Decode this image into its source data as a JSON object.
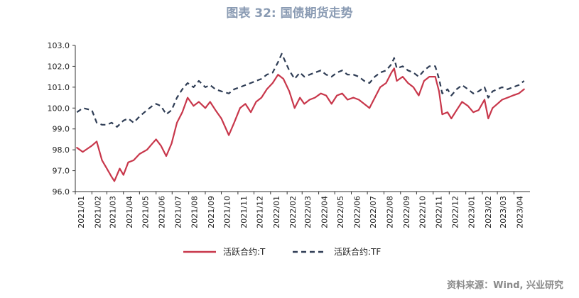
{
  "chart_data": {
    "type": "line",
    "title": "图表 32: 国债期货走势",
    "source": "资料来源：Wind, 兴业研究",
    "xlabel": "",
    "ylabel": "",
    "ylim": [
      96.0,
      103.0
    ],
    "yticks": [
      "96.0",
      "97.0",
      "98.0",
      "99.0",
      "100.0",
      "101.0",
      "102.0",
      "103.0"
    ],
    "x_range": [
      "2021/01",
      "2023/04"
    ],
    "xticks": [
      "2021/01",
      "2021/02",
      "2021/03",
      "2021/04",
      "2021/05",
      "2021/06",
      "2021/07",
      "2021/08",
      "2021/09",
      "2021/10",
      "2021/11",
      "2021/12",
      "2022/01",
      "2022/02",
      "2022/03",
      "2022/04",
      "2022/05",
      "2022/06",
      "2022/07",
      "2022/08",
      "2022/09",
      "2022/10",
      "2022/11",
      "2022/12",
      "2023/01",
      "2023/02",
      "2023/03",
      "2023/04"
    ],
    "grid": false,
    "legend_position": "bottom",
    "series": [
      {
        "name": "活跃合约:T",
        "color": "#c8374b",
        "style": "solid",
        "points": [
          [
            "2021/01/04",
            98.1
          ],
          [
            "2021/01/15",
            97.9
          ],
          [
            "2021/02/01",
            98.2
          ],
          [
            "2021/02/10",
            98.4
          ],
          [
            "2021/02/20",
            97.5
          ],
          [
            "2021/03/01",
            97.1
          ],
          [
            "2021/03/10",
            96.7
          ],
          [
            "2021/03/15",
            96.5
          ],
          [
            "2021/03/25",
            97.1
          ],
          [
            "2021/04/01",
            96.8
          ],
          [
            "2021/04/10",
            97.4
          ],
          [
            "2021/04/20",
            97.5
          ],
          [
            "2021/05/01",
            97.8
          ],
          [
            "2021/05/15",
            98.0
          ],
          [
            "2021/05/25",
            98.3
          ],
          [
            "2021/06/01",
            98.5
          ],
          [
            "2021/06/10",
            98.2
          ],
          [
            "2021/06/20",
            97.7
          ],
          [
            "2021/06/30",
            98.3
          ],
          [
            "2021/07/10",
            99.3
          ],
          [
            "2021/07/20",
            99.8
          ],
          [
            "2021/07/30",
            100.5
          ],
          [
            "2021/08/10",
            100.1
          ],
          [
            "2021/08/20",
            100.3
          ],
          [
            "2021/09/01",
            100.0
          ],
          [
            "2021/09/10",
            100.3
          ],
          [
            "2021/09/20",
            99.9
          ],
          [
            "2021/10/01",
            99.5
          ],
          [
            "2021/10/15",
            98.7
          ],
          [
            "2021/10/25",
            99.3
          ],
          [
            "2021/11/05",
            100.0
          ],
          [
            "2021/11/15",
            100.2
          ],
          [
            "2021/11/25",
            99.8
          ],
          [
            "2021/12/05",
            100.3
          ],
          [
            "2021/12/15",
            100.5
          ],
          [
            "2021/12/25",
            100.9
          ],
          [
            "2022/01/05",
            101.2
          ],
          [
            "2022/01/15",
            101.6
          ],
          [
            "2022/01/25",
            101.4
          ],
          [
            "2022/02/05",
            100.8
          ],
          [
            "2022/02/15",
            100.0
          ],
          [
            "2022/02/25",
            100.5
          ],
          [
            "2022/03/05",
            100.2
          ],
          [
            "2022/03/15",
            100.4
          ],
          [
            "2022/03/25",
            100.5
          ],
          [
            "2022/04/05",
            100.7
          ],
          [
            "2022/04/15",
            100.6
          ],
          [
            "2022/04/25",
            100.2
          ],
          [
            "2022/05/05",
            100.6
          ],
          [
            "2022/05/15",
            100.7
          ],
          [
            "2022/05/25",
            100.4
          ],
          [
            "2022/06/05",
            100.5
          ],
          [
            "2022/06/15",
            100.4
          ],
          [
            "2022/06/25",
            100.2
          ],
          [
            "2022/07/05",
            100.0
          ],
          [
            "2022/07/15",
            100.5
          ],
          [
            "2022/07/25",
            101.0
          ],
          [
            "2022/08/05",
            101.2
          ],
          [
            "2022/08/15",
            101.7
          ],
          [
            "2022/08/20",
            101.9
          ],
          [
            "2022/08/25",
            101.3
          ],
          [
            "2022/09/05",
            101.5
          ],
          [
            "2022/09/15",
            101.2
          ],
          [
            "2022/09/25",
            101.0
          ],
          [
            "2022/10/05",
            100.6
          ],
          [
            "2022/10/15",
            101.3
          ],
          [
            "2022/10/25",
            101.5
          ],
          [
            "2022/11/05",
            101.5
          ],
          [
            "2022/11/12",
            100.8
          ],
          [
            "2022/11/18",
            99.7
          ],
          [
            "2022/11/28",
            99.8
          ],
          [
            "2022/12/05",
            99.5
          ],
          [
            "2022/12/15",
            99.9
          ],
          [
            "2022/12/25",
            100.3
          ],
          [
            "2023/01/05",
            100.1
          ],
          [
            "2023/01/15",
            99.8
          ],
          [
            "2023/01/25",
            99.9
          ],
          [
            "2023/02/05",
            100.4
          ],
          [
            "2023/02/12",
            99.5
          ],
          [
            "2023/02/20",
            100.0
          ],
          [
            "2023/03/01",
            100.2
          ],
          [
            "2023/03/10",
            100.4
          ],
          [
            "2023/03/20",
            100.5
          ],
          [
            "2023/03/30",
            100.6
          ],
          [
            "2023/04/10",
            100.7
          ],
          [
            "2023/04/20",
            100.9
          ]
        ]
      },
      {
        "name": "活跃合约:TF",
        "color": "#2f3d55",
        "style": "dashed",
        "points": [
          [
            "2021/01/04",
            99.8
          ],
          [
            "2021/01/15",
            100.0
          ],
          [
            "2021/02/01",
            99.9
          ],
          [
            "2021/02/10",
            99.3
          ],
          [
            "2021/02/20",
            99.2
          ],
          [
            "2021/03/01",
            99.2
          ],
          [
            "2021/03/10",
            99.3
          ],
          [
            "2021/03/20",
            99.1
          ],
          [
            "2021/04/01",
            99.4
          ],
          [
            "2021/04/10",
            99.5
          ],
          [
            "2021/04/20",
            99.3
          ],
          [
            "2021/05/01",
            99.6
          ],
          [
            "2021/05/15",
            99.9
          ],
          [
            "2021/05/25",
            100.1
          ],
          [
            "2021/06/01",
            100.2
          ],
          [
            "2021/06/10",
            100.1
          ],
          [
            "2021/06/20",
            99.7
          ],
          [
            "2021/06/30",
            99.9
          ],
          [
            "2021/07/10",
            100.5
          ],
          [
            "2021/07/20",
            100.9
          ],
          [
            "2021/07/30",
            101.2
          ],
          [
            "2021/08/10",
            101.0
          ],
          [
            "2021/08/20",
            101.3
          ],
          [
            "2021/09/01",
            101.0
          ],
          [
            "2021/09/10",
            101.1
          ],
          [
            "2021/09/20",
            100.9
          ],
          [
            "2021/10/01",
            100.8
          ],
          [
            "2021/10/15",
            100.7
          ],
          [
            "2021/10/25",
            100.9
          ],
          [
            "2021/11/05",
            101.0
          ],
          [
            "2021/11/15",
            101.1
          ],
          [
            "2021/11/25",
            101.2
          ],
          [
            "2021/12/05",
            101.3
          ],
          [
            "2021/12/15",
            101.4
          ],
          [
            "2021/12/25",
            101.6
          ],
          [
            "2022/01/05",
            101.7
          ],
          [
            "2022/01/15",
            102.2
          ],
          [
            "2022/01/22",
            102.6
          ],
          [
            "2022/02/05",
            101.8
          ],
          [
            "2022/02/15",
            101.4
          ],
          [
            "2022/02/25",
            101.7
          ],
          [
            "2022/03/05",
            101.5
          ],
          [
            "2022/03/15",
            101.6
          ],
          [
            "2022/03/25",
            101.7
          ],
          [
            "2022/04/05",
            101.8
          ],
          [
            "2022/04/15",
            101.6
          ],
          [
            "2022/04/25",
            101.5
          ],
          [
            "2022/05/05",
            101.7
          ],
          [
            "2022/05/15",
            101.8
          ],
          [
            "2022/05/25",
            101.6
          ],
          [
            "2022/06/05",
            101.6
          ],
          [
            "2022/06/15",
            101.5
          ],
          [
            "2022/06/25",
            101.3
          ],
          [
            "2022/07/05",
            101.2
          ],
          [
            "2022/07/15",
            101.5
          ],
          [
            "2022/07/25",
            101.7
          ],
          [
            "2022/08/05",
            101.8
          ],
          [
            "2022/08/15",
            102.1
          ],
          [
            "2022/08/20",
            102.4
          ],
          [
            "2022/08/25",
            101.9
          ],
          [
            "2022/09/05",
            102.0
          ],
          [
            "2022/09/15",
            101.8
          ],
          [
            "2022/09/25",
            101.7
          ],
          [
            "2022/10/05",
            101.5
          ],
          [
            "2022/10/15",
            101.8
          ],
          [
            "2022/10/25",
            102.0
          ],
          [
            "2022/11/05",
            102.0
          ],
          [
            "2022/11/12",
            101.4
          ],
          [
            "2022/11/18",
            100.7
          ],
          [
            "2022/11/28",
            100.9
          ],
          [
            "2022/12/05",
            100.6
          ],
          [
            "2022/12/15",
            100.9
          ],
          [
            "2022/12/25",
            101.1
          ],
          [
            "2023/01/05",
            100.9
          ],
          [
            "2023/01/15",
            100.7
          ],
          [
            "2023/01/25",
            100.8
          ],
          [
            "2023/02/05",
            101.0
          ],
          [
            "2023/02/12",
            100.5
          ],
          [
            "2023/02/20",
            100.8
          ],
          [
            "2023/03/01",
            100.9
          ],
          [
            "2023/03/10",
            101.0
          ],
          [
            "2023/03/20",
            100.9
          ],
          [
            "2023/03/30",
            101.0
          ],
          [
            "2023/04/10",
            101.1
          ],
          [
            "2023/04/20",
            101.3
          ]
        ]
      }
    ]
  }
}
